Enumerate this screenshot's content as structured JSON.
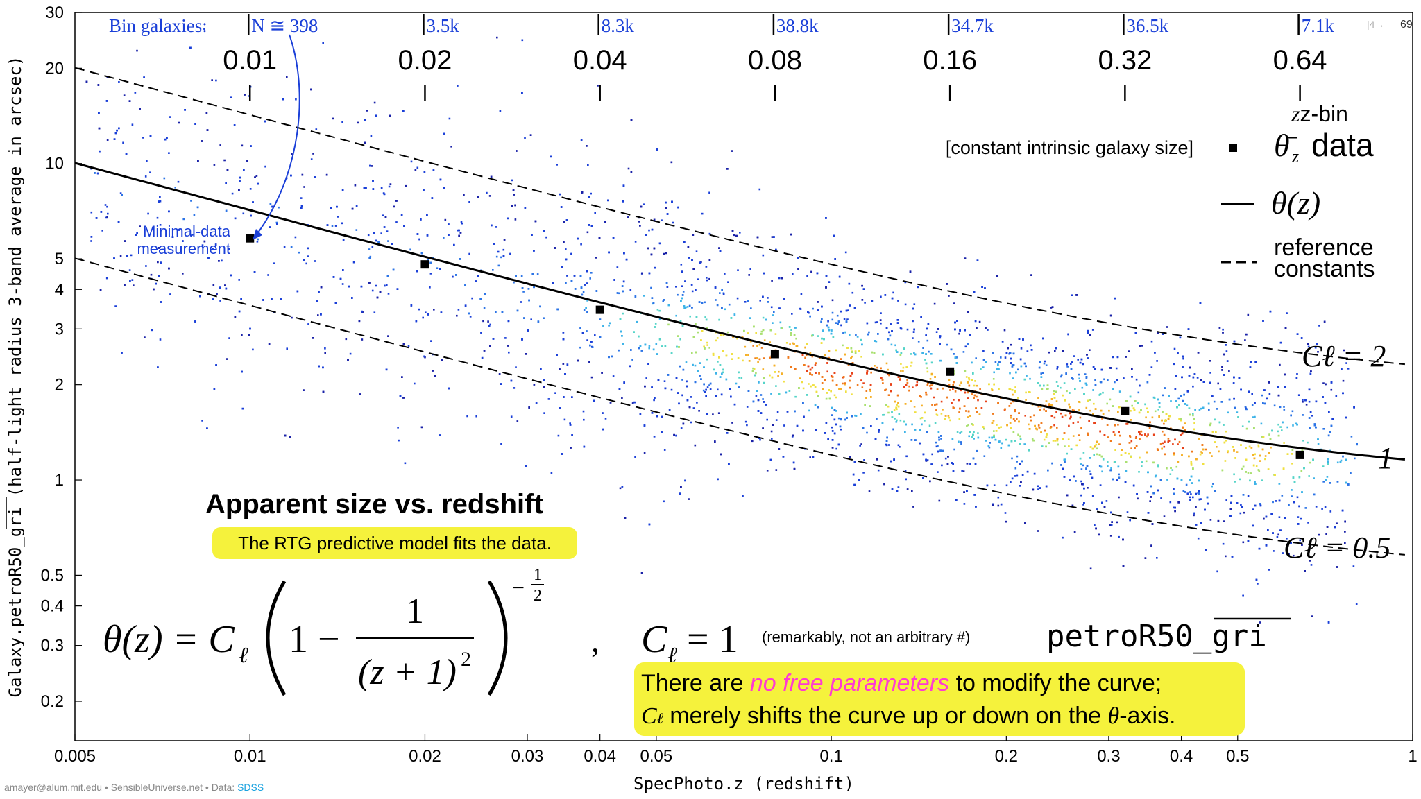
{
  "chart_data": {
    "type": "scatter",
    "title": "Apparent size vs. redshift",
    "subtitle": "The RTG predictive model fits the data.",
    "xlabel": "SpecPhoto.z (redshift)",
    "ylabel": "Galaxy.petroR50_gri (half-light radius 3-band average in arcsec)",
    "ylabel_overline": "gri",
    "xscale": "log",
    "yscale": "log",
    "xlim": [
      0.005,
      1
    ],
    "ylim": [
      0.15,
      30
    ],
    "x_ticks": [
      "0.005",
      "0.01",
      "0.02",
      "0.03",
      "0.04",
      "0.05",
      "0.1",
      "0.2",
      "0.3",
      "0.4",
      "0.5",
      "1"
    ],
    "x_tick_values": [
      0.005,
      0.01,
      0.02,
      0.03,
      0.04,
      0.05,
      0.1,
      0.2,
      0.3,
      0.4,
      0.5,
      1
    ],
    "y_ticks": [
      "0.2",
      "0.3",
      "0.4",
      "0.5",
      "1",
      "2",
      "3",
      "4",
      "5",
      "10",
      "20",
      "30"
    ],
    "y_tick_values": [
      0.2,
      0.3,
      0.4,
      0.5,
      1,
      2,
      3,
      4,
      5,
      10,
      20,
      30
    ],
    "grid": false,
    "bins": {
      "caption": "Bin galaxies:",
      "z": [
        "0.01",
        "0.02",
        "0.04",
        "0.08",
        "0.16",
        "0.32",
        "0.64"
      ],
      "z_values": [
        0.01,
        0.02,
        0.04,
        0.08,
        0.16,
        0.32,
        0.64
      ],
      "counts": [
        "N ≅ 398",
        "3.5k",
        "8.3k",
        "38.8k",
        "34.7k",
        "36.5k",
        "7.1k"
      ]
    },
    "series": [
      {
        "name": "z-bin data (constant intrinsic galaxy size)",
        "type": "scatter",
        "x": [
          0.01,
          0.02,
          0.04,
          0.08,
          0.16,
          0.32,
          0.64
        ],
        "y": [
          5.8,
          4.8,
          3.45,
          2.5,
          2.2,
          1.65,
          1.2
        ]
      },
      {
        "name": "θ(z)",
        "type": "line",
        "style": "solid",
        "C": 1
      },
      {
        "name": "reference constants C=2",
        "type": "line",
        "style": "dashed",
        "C": 2
      },
      {
        "name": "reference constants C=0.5",
        "type": "line",
        "style": "dashed",
        "C": 0.5
      }
    ],
    "curve_labels": [
      "Cℓ = 2",
      "1",
      "Cℓ = 0.5"
    ],
    "legend": {
      "placement": "top-right",
      "zbin_small": "z-bin",
      "zbin_caption": "[constant intrinsic galaxy size]",
      "zbin_symbol": "θ̄",
      "zbin_sub": "z",
      "zbin_word": "data",
      "curve": "θ(z)",
      "ref_line1": "reference",
      "ref_line2": "constants"
    },
    "annotations": {
      "minimal_1": "Minimal-data",
      "minimal_2": "measurement",
      "equation_lhs": "θ(z) = C",
      "equation_sub": "ℓ",
      "equation_one": "1 −",
      "equation_num": "1",
      "equation_den": "(z + 1)",
      "equation_den_exp": "2",
      "equation_exp_sign": "−",
      "equation_exp_num": "1",
      "equation_exp_den": "2",
      "equation_comma": ",",
      "c_eq": "C",
      "c_sub": "ℓ",
      "c_val": "= 1",
      "remark": "(remarkably, not an arbitrary #)",
      "petro_prefix": "petroR50_",
      "petro_over": "gri",
      "note1_a": "There are ",
      "note1_b": "no free parameters",
      "note1_c": " to modify the curve;",
      "note2_a": "C",
      "note2_sub": "ℓ",
      "note2_b": " merely shifts the curve up or down on the ",
      "note2_theta": "θ",
      "note2_c": "-axis."
    },
    "colors": {
      "data": "#000000",
      "scatter_low": "#1f2fb0",
      "scatter_high": "#e8261a",
      "annotation": "#1a3fd8",
      "magenta": "#ff3bd2",
      "highlight": "#f5f23c",
      "sdss": "#1ba3e0"
    }
  },
  "footer": {
    "credit": "amayer@alum.mit.edu • SensibleUniverse.net • Data: ",
    "source": "SDSS",
    "slide_nav": "|4→",
    "page": "69"
  }
}
